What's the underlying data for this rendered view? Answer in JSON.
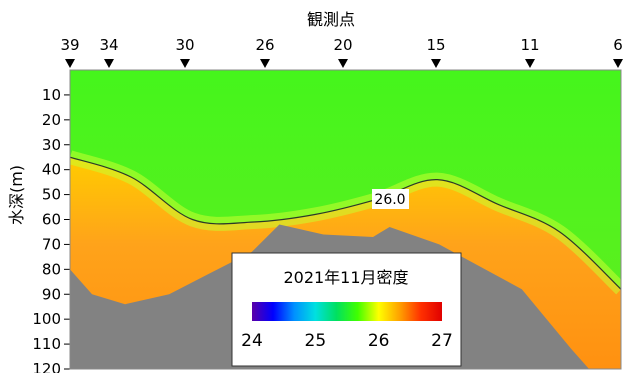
{
  "chart_data": {
    "type": "heatmap",
    "title": "",
    "xlabel": "観測点",
    "ylabel": "水深(m)",
    "stations": [
      "39",
      "34",
      "30",
      "26",
      "20",
      "15",
      "11",
      "6"
    ],
    "yticks": [
      10,
      20,
      30,
      40,
      50,
      60,
      70,
      80,
      90,
      100,
      110,
      120
    ],
    "ylim": [
      0,
      120
    ],
    "contour": {
      "value": 26.0,
      "label": "26.0",
      "depths": [
        35,
        43,
        60,
        61,
        58,
        52,
        44,
        54,
        65,
        88
      ]
    },
    "bottom_profile": [
      {
        "station_frac": 0.0,
        "depth": 80
      },
      {
        "station_frac": 0.04,
        "depth": 90
      },
      {
        "station_frac": 0.1,
        "depth": 94
      },
      {
        "station_frac": 0.18,
        "depth": 90
      },
      {
        "station_frac": 0.25,
        "depth": 82
      },
      {
        "station_frac": 0.33,
        "depth": 73
      },
      {
        "station_frac": 0.38,
        "depth": 62
      },
      {
        "station_frac": 0.46,
        "depth": 66
      },
      {
        "station_frac": 0.55,
        "depth": 67
      },
      {
        "station_frac": 0.58,
        "depth": 63
      },
      {
        "station_frac": 0.67,
        "depth": 70
      },
      {
        "station_frac": 0.82,
        "depth": 88
      },
      {
        "station_frac": 0.91,
        "depth": 112
      },
      {
        "station_frac": 0.95,
        "depth": 122
      }
    ],
    "legend": {
      "title": "2021年11月密度",
      "min": 24,
      "max": 27,
      "ticks": [
        "24",
        "25",
        "26",
        "27"
      ],
      "colors": [
        "#5a00a8",
        "#0000ff",
        "#0090ff",
        "#00e0e0",
        "#00e060",
        "#40ff00",
        "#ffff00",
        "#ffa000",
        "#ff3000",
        "#e00000"
      ]
    },
    "grid": false
  }
}
